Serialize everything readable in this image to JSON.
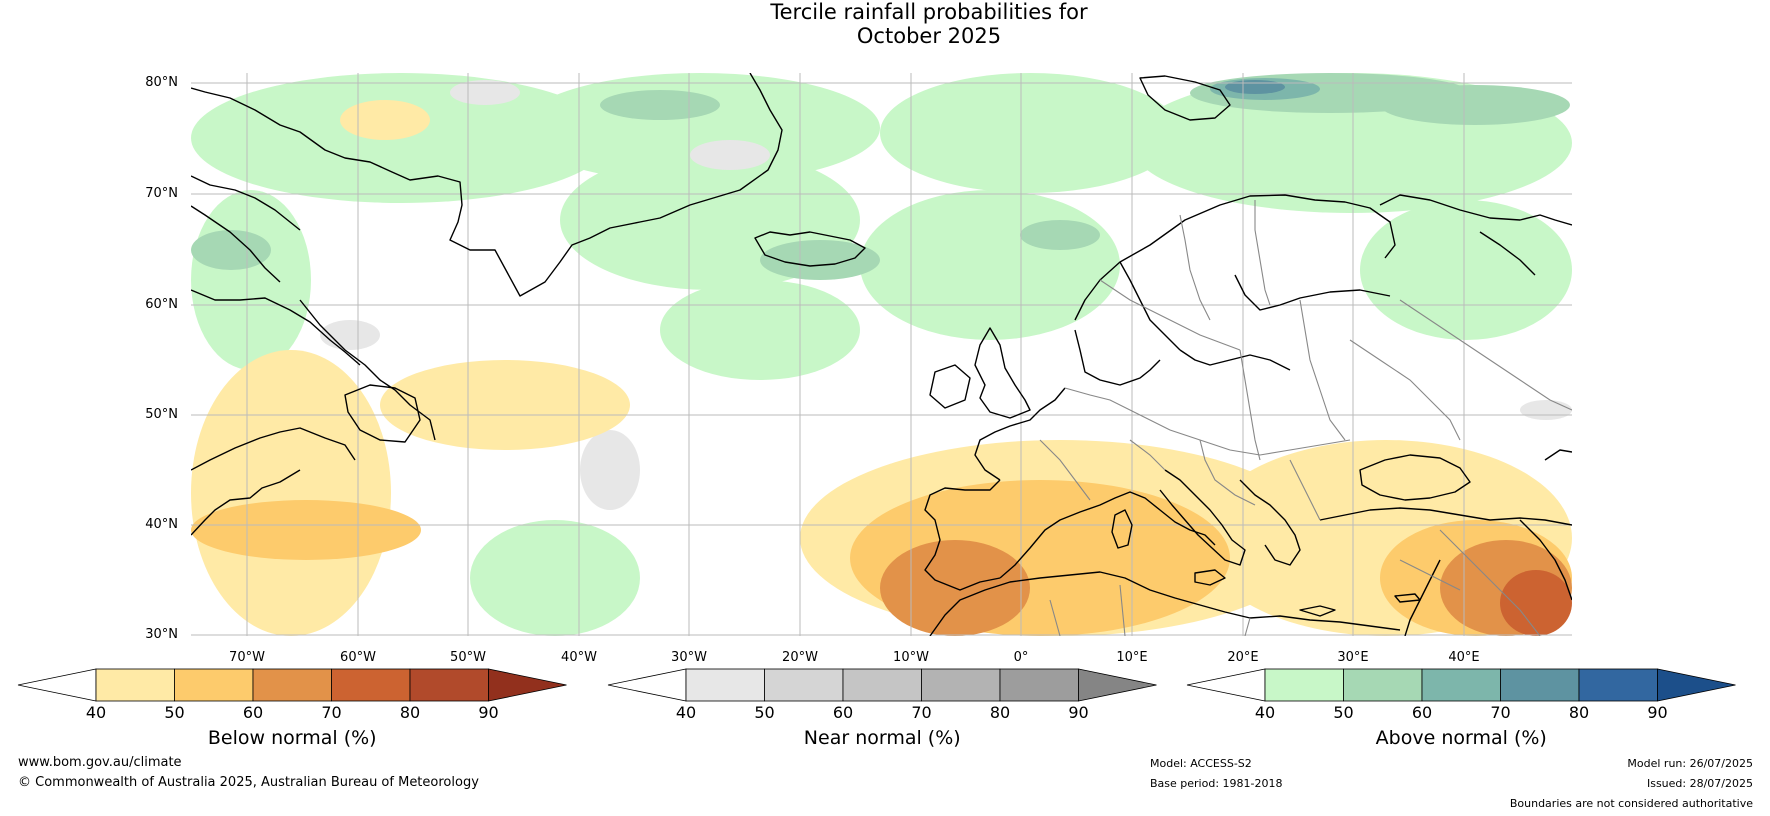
{
  "title": {
    "line1": "Tercile rainfall probabilities for",
    "line2": "October 2025"
  },
  "map": {
    "lat_labels": [
      "80°N",
      "70°N",
      "60°N",
      "50°N",
      "40°N",
      "30°N"
    ],
    "lon_labels": [
      "70°W",
      "60°W",
      "50°W",
      "40°W",
      "30°W",
      "20°W",
      "10°W",
      "0°",
      "10°E",
      "20°E",
      "30°E",
      "40°E"
    ],
    "colors": {
      "below": [
        "#ffeaa6",
        "#fdcb6c",
        "#e29249",
        "#cc6331",
        "#b14a2b",
        "#92301d"
      ],
      "near": [
        "#e7e7e7",
        "#d5d5d5",
        "#c5c5c5",
        "#b3b3b3",
        "#9d9d9d",
        "#858585"
      ],
      "above": [
        "#c8f7c8",
        "#a6d8b4",
        "#7db6ab",
        "#5e93a1",
        "#3267a0",
        "#1c4f8a"
      ],
      "coastline": "#000000",
      "borders": "#8a8a8a",
      "grid": "#bbbbbb"
    }
  },
  "colorbars": [
    {
      "id": "below",
      "title": "Below normal (%)",
      "ticks": [
        "40",
        "50",
        "60",
        "70",
        "80",
        "90"
      ]
    },
    {
      "id": "near",
      "title": "Near normal (%)",
      "ticks": [
        "40",
        "50",
        "60",
        "70",
        "80",
        "90"
      ]
    },
    {
      "id": "above",
      "title": "Above normal (%)",
      "ticks": [
        "40",
        "50",
        "60",
        "70",
        "80",
        "90"
      ]
    }
  ],
  "footer": {
    "website": "www.bom.gov.au/climate",
    "copyright": "© Commonwealth of Australia 2025, Australian Bureau of Meteorology",
    "model": "Model: ACCESS-S2",
    "base_period": "Base period: 1981-2018",
    "model_run": "Model run: 26/07/2025",
    "issued": "Issued: 28/07/2025",
    "disclaimer": "Boundaries are not considered authoritative"
  }
}
